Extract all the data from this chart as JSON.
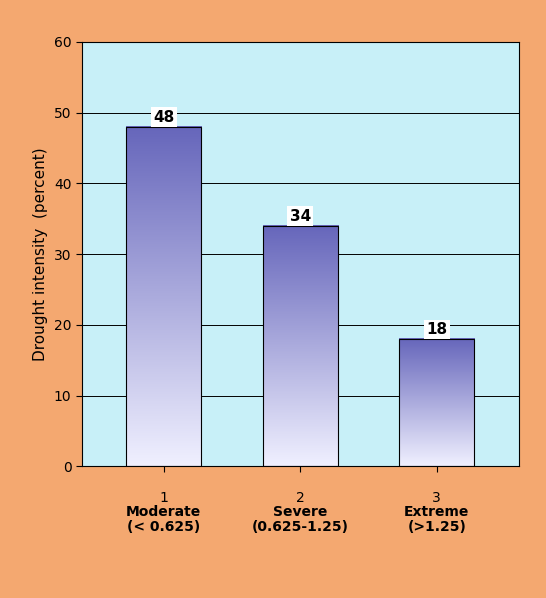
{
  "values": [
    48,
    34,
    18
  ],
  "x_positions": [
    1,
    2,
    3
  ],
  "x_tick_line1": [
    "1",
    "2",
    "3"
  ],
  "x_tick_line2": [
    "Moderate",
    "Severe",
    "Extreme"
  ],
  "x_tick_line3": [
    "(< 0.625)",
    "(0.625-1.25)",
    "(>1.25)"
  ],
  "ylabel": "Drought intensity  (percent)",
  "ylim": [
    0,
    60
  ],
  "yticks": [
    0,
    10,
    20,
    30,
    40,
    50,
    60
  ],
  "bar_top_color": "#6666bb",
  "bar_bottom_color": "#f0f0ff",
  "background_color": "#c8f0f8",
  "outer_background": "#f4a870",
  "bar_edge_color": "#000000",
  "label_bg_color": "#ffffff",
  "grid_color": "#000000",
  "annotation_fontsize": 11,
  "tick_label_fontsize": 10,
  "ylabel_fontsize": 11,
  "bar_width": 0.55
}
